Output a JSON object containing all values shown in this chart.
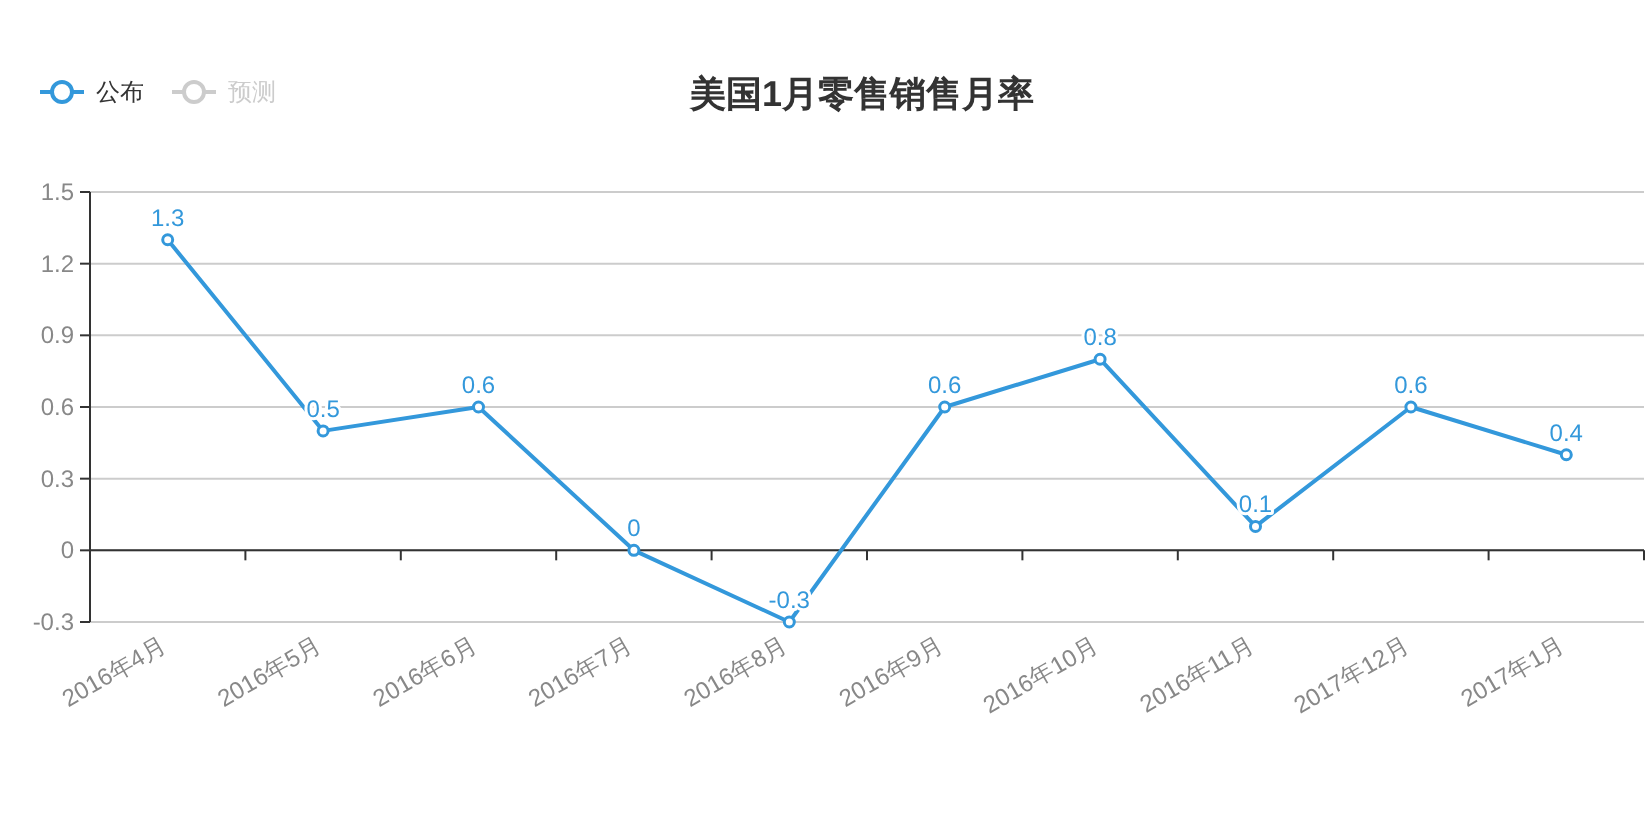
{
  "chart_data": {
    "type": "line",
    "title": "美国1月零售销售月率",
    "categories": [
      "2016年4月",
      "2016年5月",
      "2016年6月",
      "2016年7月",
      "2016年8月",
      "2016年9月",
      "2016年10月",
      "2016年11月",
      "2017年12月",
      "2017年1月"
    ],
    "series": [
      {
        "name": "公布",
        "color": "#3398db",
        "values": [
          1.3,
          0.5,
          0.6,
          0,
          -0.3,
          0.6,
          0.8,
          0.1,
          0.6,
          0.4
        ]
      },
      {
        "name": "预测",
        "color": "#cccccc",
        "values": [
          null,
          null,
          null,
          null,
          null,
          null,
          null,
          null,
          null,
          null
        ]
      }
    ],
    "ylim": [
      -0.3,
      1.5
    ],
    "yticks": [
      {
        "value": -0.3,
        "label": "-0.3"
      },
      0,
      0.3,
      0.6,
      0.9,
      1.2,
      1.5
    ],
    "grid": "y",
    "legend": "top left",
    "marker": "circle",
    "line_style": "solid",
    "data_labels": true
  }
}
